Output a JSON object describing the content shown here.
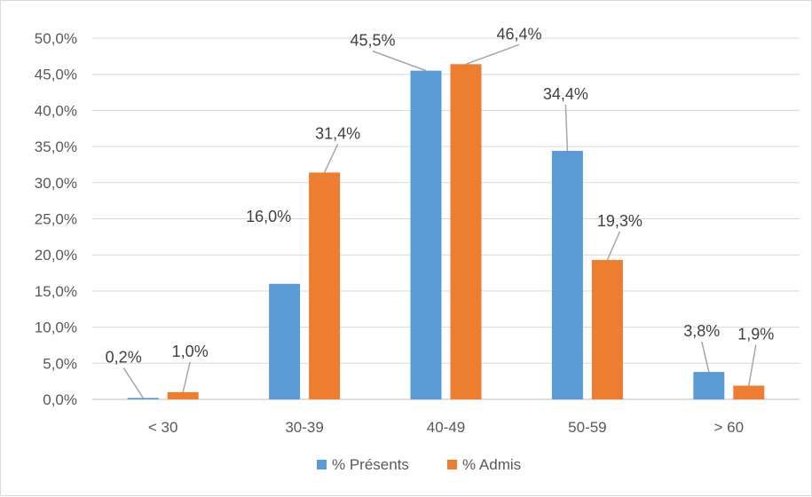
{
  "chart_data": {
    "type": "bar",
    "title": "",
    "xlabel": "",
    "ylabel": "",
    "categories": [
      "< 30",
      "30-39",
      "40-49",
      "50-59",
      "> 60"
    ],
    "series": [
      {
        "name": "% Présents",
        "color": "#5b9bd5",
        "values": [
          0.2,
          16.0,
          45.5,
          34.4,
          3.8
        ],
        "labels": [
          "0,2%",
          "16,0%",
          "45,5%",
          "34,4%",
          "3,8%"
        ]
      },
      {
        "name": "% Admis",
        "color": "#ed7d31",
        "values": [
          1.0,
          31.4,
          46.4,
          19.3,
          1.9
        ],
        "labels": [
          "1,0%",
          "31,4%",
          "46,4%",
          "19,3%",
          "1,9%"
        ]
      }
    ],
    "ylim": [
      0,
      50
    ],
    "yticks": [
      0,
      5,
      10,
      15,
      20,
      25,
      30,
      35,
      40,
      45,
      50
    ],
    "ytick_labels": [
      "0,0%",
      "5,0%",
      "10,0%",
      "15,0%",
      "20,0%",
      "25,0%",
      "30,0%",
      "35,0%",
      "40,0%",
      "45,0%",
      "50,0%"
    ],
    "grid": true,
    "gridline_color": "#d9d9d9",
    "axis_color": "#bfbfbf",
    "legend_position": "bottom"
  }
}
